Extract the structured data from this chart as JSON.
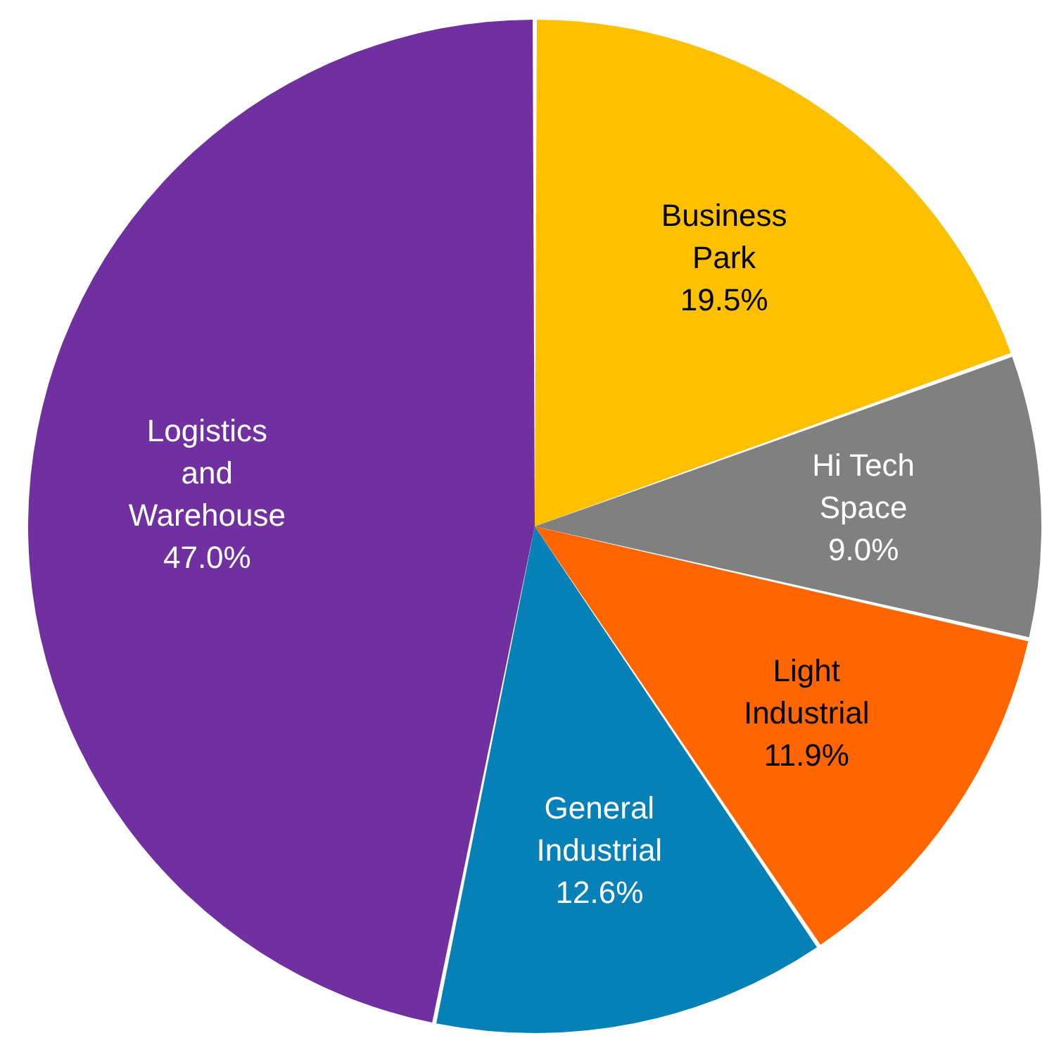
{
  "chart_data": {
    "type": "pie",
    "categories": [
      "Business Park",
      "Hi Tech Space",
      "Light Industrial",
      "General Industrial",
      "Logistics and Warehouse"
    ],
    "values": [
      19.5,
      9.0,
      11.9,
      12.6,
      47.0
    ],
    "colors": [
      "#ffc000",
      "#808080",
      "#ff6600",
      "#0681b8",
      "#7030a0"
    ],
    "value_labels": [
      "19.5%",
      "9.0%",
      "11.9%",
      "12.6%",
      "47.0%"
    ]
  }
}
